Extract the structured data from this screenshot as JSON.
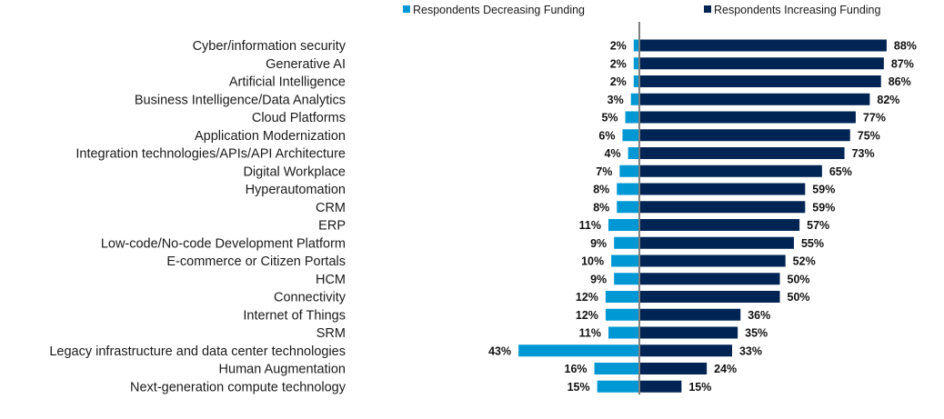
{
  "chart_data": {
    "type": "bar",
    "orientation": "horizontal-diverging",
    "title": "",
    "xlabel": "",
    "ylabel": "",
    "xlim": [
      -45,
      90
    ],
    "grid": false,
    "legend_position": "top",
    "categories": [
      "Cyber/information security",
      "Generative AI",
      "Artificial Intelligence",
      "Business Intelligence/Data Analytics",
      "Cloud Platforms",
      "Application Modernization",
      "Integration technologies/APIs/API Architecture",
      "Digital Workplace",
      "Hyperautomation",
      "CRM",
      "ERP",
      "Low-code/No-code Development Platform",
      "E-commerce or Citizen Portals",
      "HCM",
      "Connectivity",
      "Internet of Things",
      "SRM",
      "Legacy infrastructure and data center technologies",
      "Human Augmentation",
      "Next-generation compute technology"
    ],
    "series": [
      {
        "name": "Respondents Decreasing Funding",
        "color": "#0098D4",
        "direction": "left",
        "values": [
          2,
          2,
          2,
          3,
          5,
          6,
          4,
          7,
          8,
          8,
          11,
          9,
          10,
          9,
          12,
          12,
          11,
          43,
          16,
          15
        ]
      },
      {
        "name": "Respondents Increasing Funding",
        "color": "#002554",
        "direction": "right",
        "values": [
          88,
          87,
          86,
          82,
          77,
          75,
          73,
          65,
          59,
          59,
          57,
          55,
          52,
          50,
          50,
          36,
          35,
          33,
          24,
          15
        ]
      }
    ],
    "value_suffix": "%",
    "axis_color": "#7f7f7f"
  }
}
